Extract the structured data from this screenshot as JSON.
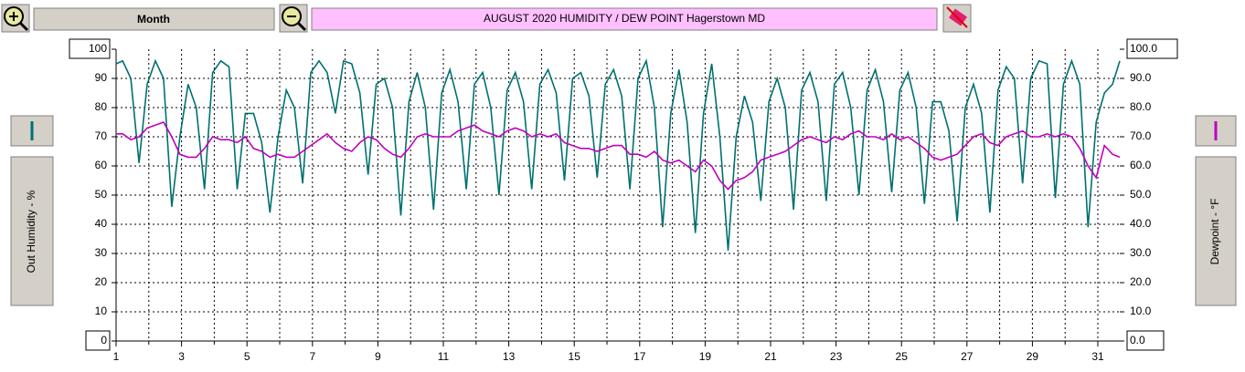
{
  "toolbar": {
    "period": "Month"
  },
  "chart_data": {
    "type": "line",
    "title": "AUGUST  2020   HUMIDITY / DEW POINT  Hagerstown MD",
    "y_label": "Out Humidity - %",
    "y2_label": "Dewpoint - °F",
    "grid": true,
    "xlim": [
      1,
      31.67
    ],
    "xticks": [
      1,
      3,
      5,
      7,
      9,
      11,
      13,
      15,
      17,
      19,
      21,
      23,
      25,
      27,
      29,
      31
    ],
    "x_minor_ticks": [
      2,
      4,
      6,
      8,
      10,
      12,
      14,
      16,
      18,
      20,
      22,
      24,
      26,
      28,
      30
    ],
    "ylim": [
      0,
      100
    ],
    "yticks": [
      0,
      10,
      20,
      30,
      40,
      50,
      60,
      70,
      80,
      90,
      100
    ],
    "y2lim": [
      0,
      100
    ],
    "y2ticks": [
      {
        "value": 0,
        "label": "0.0"
      },
      {
        "value": 10,
        "label": "10.0"
      },
      {
        "value": 20,
        "label": "20.0"
      },
      {
        "value": 30,
        "label": "30.0"
      },
      {
        "value": 40,
        "label": "40.0"
      },
      {
        "value": 50,
        "label": "50.0"
      },
      {
        "value": 60,
        "label": "60.0"
      },
      {
        "value": 70,
        "label": "70.0"
      },
      {
        "value": 80,
        "label": "80.0"
      },
      {
        "value": 90,
        "label": "90.0"
      },
      {
        "value": 100,
        "label": "100.0"
      }
    ],
    "x": [
      1,
      1.2,
      1.45,
      1.7,
      1.95,
      2.2,
      2.45,
      2.7,
      2.95,
      3.2,
      3.45,
      3.7,
      3.95,
      4.2,
      4.45,
      4.7,
      4.95,
      5.2,
      5.45,
      5.7,
      5.95,
      6.2,
      6.45,
      6.7,
      6.95,
      7.2,
      7.45,
      7.7,
      7.95,
      8.2,
      8.45,
      8.7,
      8.95,
      9.2,
      9.45,
      9.7,
      9.95,
      10.2,
      10.45,
      10.7,
      10.95,
      11.2,
      11.45,
      11.7,
      11.95,
      12.2,
      12.45,
      12.7,
      12.95,
      13.2,
      13.45,
      13.7,
      13.95,
      14.2,
      14.45,
      14.7,
      14.95,
      15.2,
      15.45,
      15.7,
      15.95,
      16.2,
      16.45,
      16.7,
      16.95,
      17.2,
      17.45,
      17.7,
      17.95,
      18.2,
      18.45,
      18.7,
      18.95,
      19.2,
      19.45,
      19.7,
      19.95,
      20.2,
      20.45,
      20.7,
      20.95,
      21.2,
      21.45,
      21.7,
      21.95,
      22.2,
      22.45,
      22.7,
      22.95,
      23.2,
      23.45,
      23.7,
      23.95,
      24.2,
      24.45,
      24.7,
      24.95,
      25.2,
      25.45,
      25.7,
      25.95,
      26.2,
      26.45,
      26.7,
      26.95,
      27.2,
      27.45,
      27.7,
      27.95,
      28.2,
      28.45,
      28.7,
      28.95,
      29.2,
      29.45,
      29.7,
      29.95,
      30.2,
      30.45,
      30.7,
      30.95,
      31.2,
      31.45,
      31.67
    ],
    "series": [
      {
        "name": "Out Humidity",
        "color": "#007070",
        "axis": "y",
        "values": [
          95,
          96,
          90,
          61,
          88,
          96,
          90,
          46,
          70,
          88,
          80,
          52,
          92,
          96,
          94,
          52,
          78,
          78,
          68,
          44,
          70,
          86,
          80,
          54,
          92,
          96,
          92,
          78,
          96,
          95,
          85,
          57,
          88,
          90,
          80,
          43,
          82,
          92,
          80,
          45,
          85,
          93,
          82,
          52,
          88,
          92,
          80,
          50,
          86,
          92,
          82,
          52,
          88,
          93,
          85,
          55,
          90,
          92,
          84,
          56,
          88,
          93,
          84,
          52,
          90,
          96,
          80,
          39,
          78,
          93,
          75,
          37,
          78,
          95,
          70,
          31,
          70,
          84,
          75,
          48,
          82,
          90,
          80,
          45,
          86,
          92,
          82,
          48,
          88,
          92,
          80,
          50,
          86,
          93,
          82,
          51,
          86,
          92,
          80,
          47,
          82,
          82,
          72,
          41,
          80,
          88,
          78,
          44,
          86,
          94,
          90,
          54,
          90,
          96,
          95,
          49,
          88,
          96,
          88,
          39,
          75,
          85,
          88,
          96
        ]
      },
      {
        "name": "Dewpoint",
        "color": "#c000c0",
        "axis": "y2",
        "values": [
          71,
          71,
          69,
          70,
          73,
          74,
          75,
          70,
          64,
          63,
          63,
          66,
          70,
          69,
          69,
          68,
          70,
          66,
          65,
          63,
          64,
          63,
          63,
          65,
          67,
          69,
          71,
          68,
          66,
          65,
          68,
          70,
          69,
          66,
          64,
          63,
          66,
          70,
          71,
          70,
          70,
          70,
          72,
          73,
          74,
          72,
          71,
          70,
          72,
          73,
          72,
          70,
          71,
          70,
          71,
          68,
          67,
          66,
          66,
          65,
          66,
          67,
          67,
          64,
          64,
          63,
          65,
          62,
          61,
          62,
          60,
          58,
          62,
          60,
          55,
          52,
          55,
          56,
          58,
          62,
          63,
          64,
          65,
          67,
          69,
          70,
          69,
          68,
          70,
          69,
          71,
          72,
          70,
          70,
          69,
          71,
          69,
          70,
          68,
          66,
          63,
          62,
          63,
          64,
          67,
          70,
          71,
          68,
          67,
          70,
          71,
          72,
          70,
          70,
          71,
          70,
          71,
          70,
          66,
          60,
          56,
          67,
          64,
          63
        ]
      }
    ]
  }
}
